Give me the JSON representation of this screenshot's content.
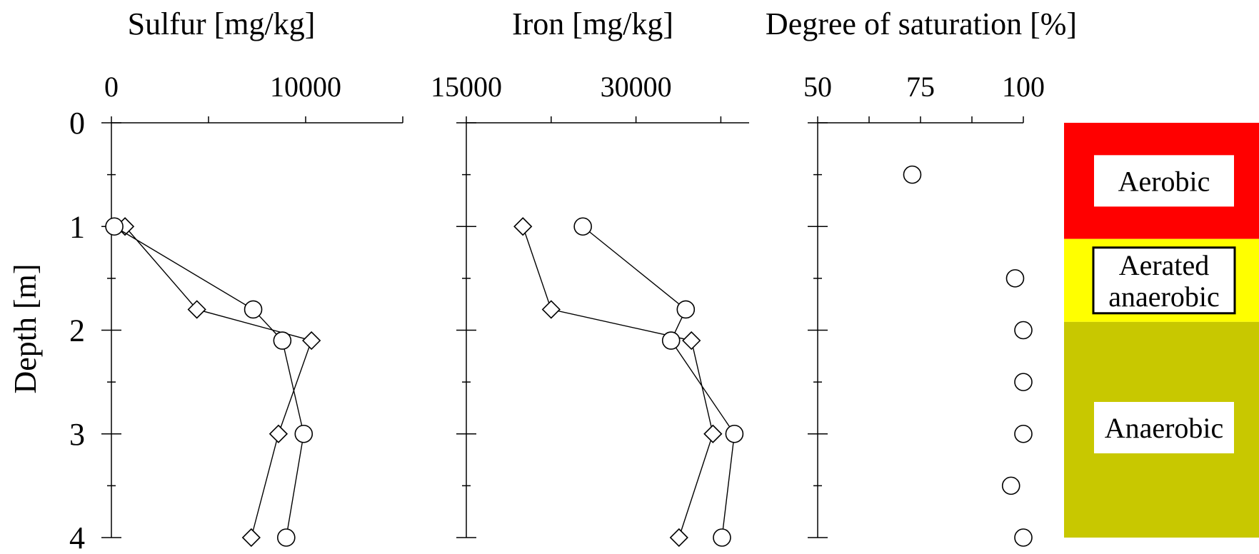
{
  "chart_data": [
    {
      "type": "scatter",
      "title": "Sulfur  [mg/kg]",
      "ylabel": "Depth [m]",
      "xlim": [
        0,
        15000
      ],
      "ylim": [
        0,
        4
      ],
      "x_tick_labels": [
        "0",
        "10000"
      ],
      "x_tick_values": [
        0,
        10000
      ],
      "y_tick_labels": [
        "0",
        "1",
        "2",
        "3",
        "4"
      ],
      "y_tick_values": [
        0,
        1,
        2,
        3,
        4
      ],
      "series": [
        {
          "marker": "diamond",
          "points": [
            {
              "x": 700,
              "y": 1.0
            },
            {
              "x": 4400,
              "y": 1.8
            },
            {
              "x": 10300,
              "y": 2.1
            },
            {
              "x": 8600,
              "y": 3.0
            },
            {
              "x": 7200,
              "y": 4.0
            }
          ]
        },
        {
          "marker": "circle",
          "points": [
            {
              "x": 150,
              "y": 1.0
            },
            {
              "x": 7300,
              "y": 1.8
            },
            {
              "x": 8800,
              "y": 2.1
            },
            {
              "x": 9900,
              "y": 3.0
            },
            {
              "x": 9000,
              "y": 4.0
            }
          ]
        }
      ]
    },
    {
      "type": "scatter",
      "title": "Iron  [mg/kg]",
      "xlim": [
        15000,
        40000
      ],
      "ylim": [
        0,
        4
      ],
      "x_tick_labels": [
        "15000",
        "30000"
      ],
      "x_tick_values": [
        15000,
        30000
      ],
      "series": [
        {
          "marker": "diamond",
          "points": [
            {
              "x": 20000,
              "y": 1.0
            },
            {
              "x": 22500,
              "y": 1.8
            },
            {
              "x": 34900,
              "y": 2.1
            },
            {
              "x": 36800,
              "y": 3.0
            },
            {
              "x": 33800,
              "y": 4.0
            }
          ]
        },
        {
          "marker": "circle",
          "points": [
            {
              "x": 25300,
              "y": 1.0
            },
            {
              "x": 34400,
              "y": 1.8
            },
            {
              "x": 33100,
              "y": 2.1
            },
            {
              "x": 38700,
              "y": 3.0
            },
            {
              "x": 37600,
              "y": 4.0
            }
          ]
        }
      ]
    },
    {
      "type": "scatter",
      "title": "Degree of saturation [%]",
      "xlim": [
        50,
        100
      ],
      "ylim": [
        0,
        4
      ],
      "x_tick_labels": [
        "50",
        "75",
        "100"
      ],
      "x_tick_values": [
        50,
        75,
        100
      ],
      "series": [
        {
          "marker": "circle",
          "points": [
            {
              "x": 73,
              "y": 0.5
            },
            {
              "x": 98,
              "y": 1.5
            },
            {
              "x": 100,
              "y": 2.0
            },
            {
              "x": 100,
              "y": 2.5
            },
            {
              "x": 100,
              "y": 3.0
            },
            {
              "x": 97,
              "y": 3.5
            },
            {
              "x": 100,
              "y": 4.0
            }
          ]
        }
      ]
    }
  ],
  "zones": [
    {
      "label_lines": [
        "Aerobic"
      ],
      "from": 0,
      "to": 1.12,
      "color": "#ff0000",
      "boxed": false
    },
    {
      "label_lines": [
        "Aerated",
        "anaerobic"
      ],
      "from": 1.12,
      "to": 1.92,
      "color": "#ffff00",
      "boxed": true
    },
    {
      "label_lines": [
        "Anaerobic"
      ],
      "from": 1.92,
      "to": 4.0,
      "color": "#c8c800",
      "boxed": false
    }
  ]
}
